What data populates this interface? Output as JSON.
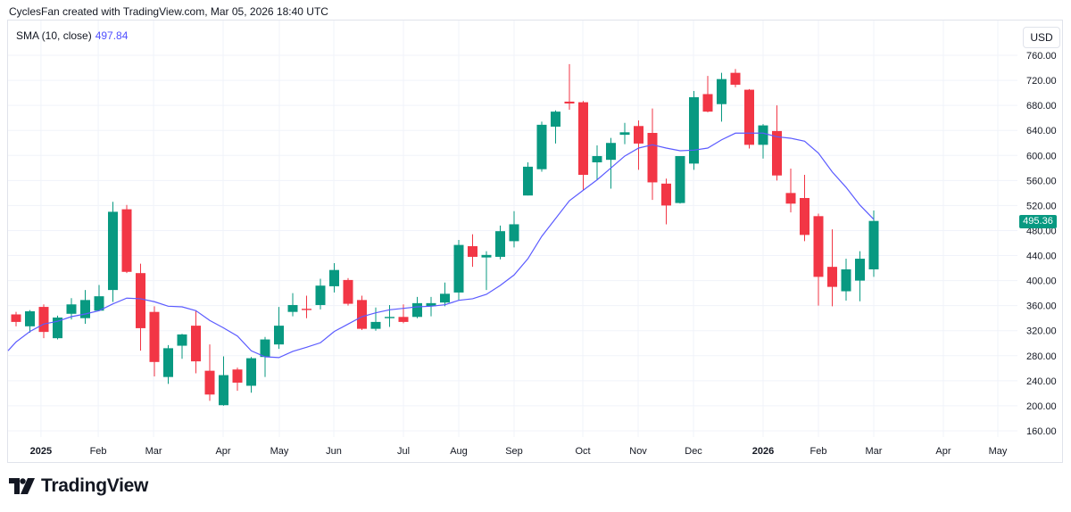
{
  "header": {
    "attribution": "CyclesFan created with TradingView.com, Mar 05, 2026 18:40 UTC"
  },
  "legend": {
    "indicator": "SMA (10, close)",
    "value": "497.84"
  },
  "currency": "USD",
  "last_price_label": "495.36",
  "logo": {
    "text": "TradingView"
  },
  "colors": {
    "up": "#089981",
    "down": "#f23645",
    "sma": "#5b5bff",
    "grid": "#f0f3fa"
  },
  "chart_data": {
    "type": "candlestick",
    "interval": "weekly",
    "ylim": [
      160,
      760
    ],
    "y_ticks": [
      "760.00",
      "720.00",
      "680.00",
      "640.00",
      "600.00",
      "560.00",
      "520.00",
      "480.00",
      "440.00",
      "400.00",
      "360.00",
      "320.00",
      "280.00",
      "240.00",
      "200.00",
      "160.00"
    ],
    "x_ticks": [
      "2025",
      "Feb",
      "Mar",
      "Apr",
      "May",
      "Jun",
      "Jul",
      "Aug",
      "Sep",
      "Oct",
      "Nov",
      "Dec",
      "2026",
      "Feb",
      "Mar",
      "Apr",
      "May"
    ],
    "grid": true,
    "ohlc": [
      [
        346,
        350,
        327,
        334
      ],
      [
        327,
        353,
        317,
        351
      ],
      [
        358,
        362,
        308,
        318
      ],
      [
        308,
        344,
        306,
        341
      ],
      [
        347,
        372,
        338,
        362
      ],
      [
        340,
        385,
        331,
        369
      ],
      [
        352,
        393,
        351,
        375
      ],
      [
        385,
        526,
        366,
        510
      ],
      [
        514,
        521,
        412,
        414
      ],
      [
        412,
        427,
        288,
        324
      ],
      [
        350,
        359,
        247,
        270
      ],
      [
        246,
        297,
        235,
        292
      ],
      [
        296,
        315,
        275,
        314
      ],
      [
        328,
        352,
        252,
        271
      ],
      [
        256,
        298,
        208,
        218
      ],
      [
        201,
        279,
        200,
        249
      ],
      [
        258,
        261,
        224,
        237
      ],
      [
        232,
        278,
        221,
        276
      ],
      [
        278,
        310,
        246,
        306
      ],
      [
        298,
        358,
        291,
        328
      ],
      [
        350,
        380,
        343,
        361
      ],
      [
        355,
        376,
        340,
        353
      ],
      [
        361,
        403,
        354,
        392
      ],
      [
        391,
        428,
        381,
        417
      ],
      [
        401,
        404,
        360,
        363
      ],
      [
        369,
        376,
        321,
        323
      ],
      [
        323,
        357,
        320,
        334
      ],
      [
        340,
        361,
        326,
        342
      ],
      [
        342,
        362,
        332,
        334
      ],
      [
        342,
        374,
        340,
        364
      ],
      [
        359,
        374,
        343,
        364
      ],
      [
        365,
        397,
        359,
        379
      ],
      [
        381,
        465,
        369,
        457
      ],
      [
        455,
        474,
        422,
        438
      ],
      [
        437,
        447,
        385,
        441
      ],
      [
        438,
        488,
        434,
        479
      ],
      [
        463,
        511,
        453,
        490
      ],
      [
        536,
        589,
        536,
        582
      ],
      [
        578,
        654,
        574,
        649
      ],
      [
        646,
        672,
        619,
        670
      ],
      [
        686,
        746,
        673,
        683
      ],
      [
        685,
        687,
        544,
        569
      ],
      [
        589,
        616,
        561,
        599
      ],
      [
        593,
        628,
        547,
        620
      ],
      [
        633,
        652,
        618,
        637
      ],
      [
        647,
        656,
        577,
        619
      ],
      [
        636,
        675,
        529,
        557
      ],
      [
        555,
        563,
        490,
        520
      ],
      [
        524,
        599,
        523,
        599
      ],
      [
        587,
        703,
        577,
        693
      ],
      [
        698,
        727,
        669,
        670
      ],
      [
        682,
        732,
        654,
        722
      ],
      [
        732,
        738,
        709,
        713
      ],
      [
        705,
        706,
        611,
        617
      ],
      [
        617,
        650,
        595,
        648
      ],
      [
        639,
        680,
        560,
        568
      ],
      [
        540,
        579,
        509,
        523
      ],
      [
        532,
        569,
        463,
        473
      ],
      [
        503,
        507,
        360,
        406
      ],
      [
        422,
        482,
        359,
        390
      ],
      [
        383,
        435,
        368,
        418
      ],
      [
        400,
        447,
        367,
        435
      ],
      [
        418,
        512,
        406,
        495.36
      ]
    ],
    "sma": [
      302,
      318.7,
      330.6,
      335,
      342.4,
      346.7,
      352,
      362.8,
      372,
      371,
      366.3,
      359.1,
      358.1,
      352,
      336.3,
      324.4,
      311.5,
      287.9,
      278.3,
      277,
      286.9,
      293.5,
      300.7,
      318.7,
      330.6,
      342.4,
      348.6,
      353.4,
      355.7,
      358.1,
      359.1,
      361.4,
      368.5,
      371,
      378.1,
      392.3,
      409,
      435,
      470.7,
      499.2,
      527.7,
      544.4,
      561,
      580,
      599,
      611.8,
      617,
      611.8,
      607.5,
      608.5,
      611.8,
      625,
      635.6,
      635.6,
      635.6,
      629.9,
      627.5,
      622.7,
      603.7,
      573.7,
      549,
      520.6,
      497.84
    ]
  }
}
